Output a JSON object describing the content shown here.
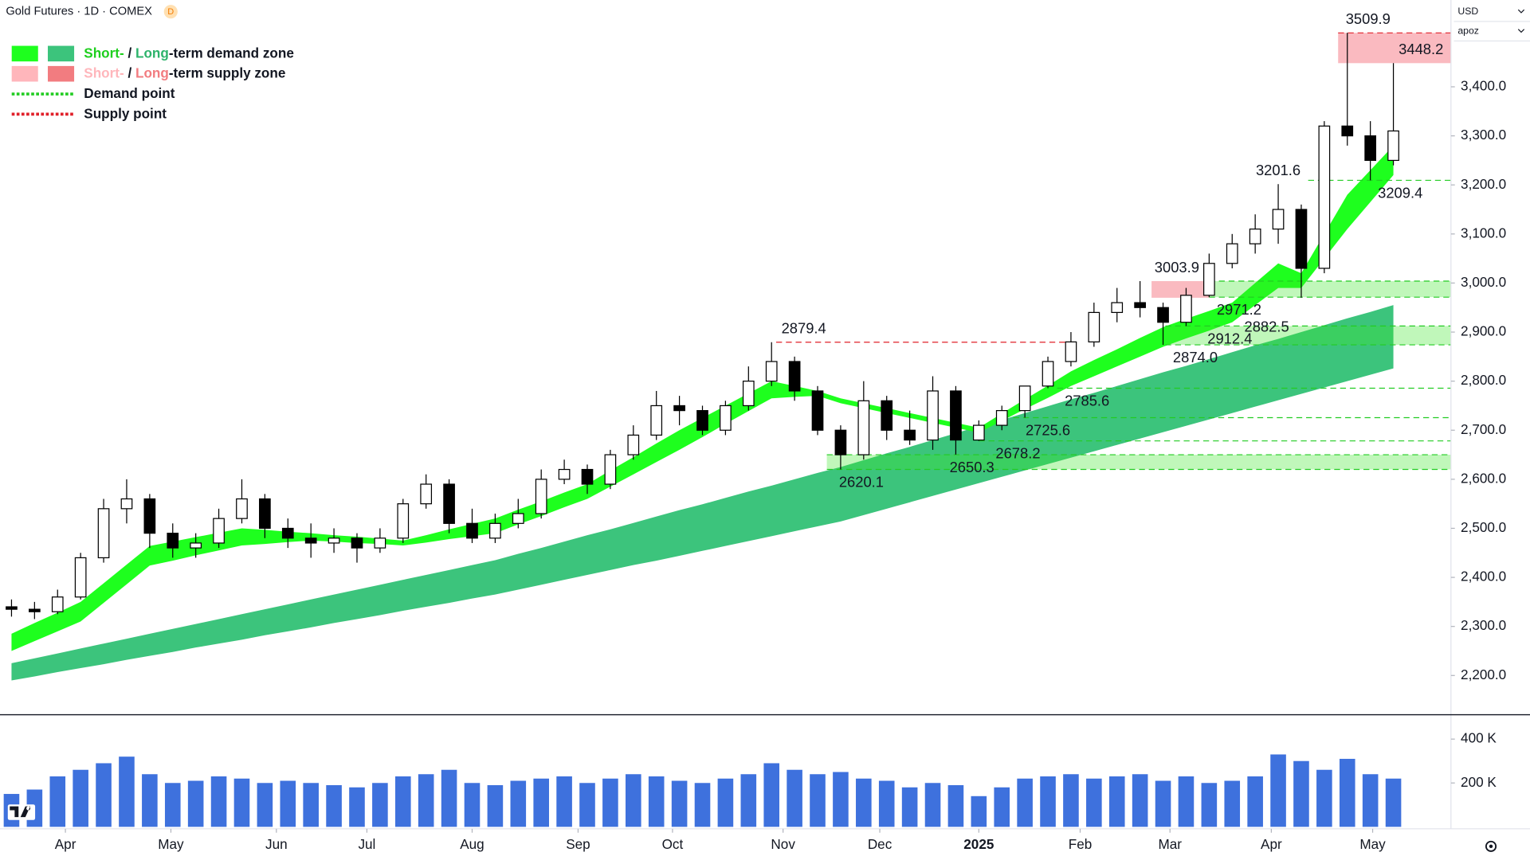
{
  "ui": {
    "badge": "D",
    "currency": "USD",
    "profile": "apoz"
  },
  "chart_data": {
    "type": "candlestick",
    "title": "Gold Futures · 1D · COMEX",
    "grid": false,
    "xlim": [
      0,
      63
    ],
    "xticks": [
      {
        "value": 2.84,
        "label": "Apr"
      },
      {
        "value": 7.42,
        "label": "May"
      },
      {
        "value": 12.0,
        "label": "Jun"
      },
      {
        "value": 15.93,
        "label": "Jul"
      },
      {
        "value": 20.5,
        "label": "Aug"
      },
      {
        "value": 25.1,
        "label": "Sep"
      },
      {
        "value": 29.2,
        "label": "Oct"
      },
      {
        "value": 34.0,
        "label": "Nov"
      },
      {
        "value": 38.2,
        "label": "Dec"
      },
      {
        "value": 42.5,
        "label": "2025"
      },
      {
        "value": 46.9,
        "label": "Feb"
      },
      {
        "value": 50.8,
        "label": "Mar"
      },
      {
        "value": 55.2,
        "label": "Apr"
      },
      {
        "value": 59.6,
        "label": "May"
      }
    ],
    "ylim": [
      2126,
      3567
    ],
    "yticks": [
      {
        "value": 2200,
        "label": "2,200.0"
      },
      {
        "value": 2300,
        "label": "2,300.0"
      },
      {
        "value": 2400,
        "label": "2,400.0"
      },
      {
        "value": 2500,
        "label": "2,500.0"
      },
      {
        "value": 2600,
        "label": "2,600.0"
      },
      {
        "value": 2700,
        "label": "2,700.0"
      },
      {
        "value": 2800,
        "label": "2,800.0"
      },
      {
        "value": 2900,
        "label": "2,900.0"
      },
      {
        "value": 3000,
        "label": "3,000.0"
      },
      {
        "value": 3100,
        "label": "3,100.0"
      },
      {
        "value": 3200,
        "label": "3,200.0"
      },
      {
        "value": 3300,
        "label": "3,300.0"
      },
      {
        "value": 3400,
        "label": "3,400.0"
      }
    ],
    "volume_ylim": [
      0,
      500000
    ],
    "volume_yticks": [
      {
        "value": 200000,
        "label": "200 K"
      },
      {
        "value": 400000,
        "label": "400 K"
      }
    ],
    "colors": {
      "up": "#ffffff",
      "down": "#000000",
      "wick": "#000000",
      "volume": "#2962d9",
      "short_demand": "#1eff1e",
      "long_demand": "#3cc47c",
      "short_supply": "#ffb6bb",
      "long_supply": "#f27c80",
      "demand_line": "#22cc22",
      "supply_line": "#e0202a"
    },
    "x": [
      0.5,
      1.5,
      2.5,
      3.5,
      4.5,
      5.5,
      6.5,
      7.5,
      8.5,
      9.5,
      10.5,
      11.5,
      12.5,
      13.5,
      14.5,
      15.5,
      16.5,
      17.5,
      18.5,
      19.5,
      20.5,
      21.5,
      22.5,
      23.5,
      24.5,
      25.5,
      26.5,
      27.5,
      28.5,
      29.5,
      30.5,
      31.5,
      32.5,
      33.5,
      34.5,
      35.5,
      36.5,
      37.5,
      38.5,
      39.5,
      40.5,
      41.5,
      42.5,
      43.5,
      44.5,
      45.5,
      46.5,
      47.5,
      48.5,
      49.5,
      50.5,
      51.5,
      52.5,
      53.5,
      54.5,
      55.5,
      56.5,
      57.5,
      58.5,
      59.5,
      60.5
    ],
    "open": [
      2340,
      2335,
      2330,
      2360,
      2440,
      2540,
      2560,
      2490,
      2460,
      2470,
      2520,
      2560,
      2500,
      2480,
      2470,
      2480,
      2460,
      2480,
      2550,
      2590,
      2510,
      2480,
      2510,
      2530,
      2600,
      2620,
      2590,
      2650,
      2690,
      2750,
      2740,
      2700,
      2750,
      2800,
      2840,
      2780,
      2700,
      2650,
      2760,
      2700,
      2680,
      2780,
      2680,
      2710,
      2740,
      2790,
      2840,
      2880,
      2940,
      2960,
      2950,
      2920,
      2975,
      3040,
      3080,
      3110,
      3150,
      3030,
      3320,
      3300,
      3250
    ],
    "high": [
      2355,
      2350,
      2375,
      2450,
      2560,
      2600,
      2570,
      2510,
      2490,
      2540,
      2600,
      2570,
      2520,
      2510,
      2500,
      2490,
      2500,
      2560,
      2610,
      2600,
      2540,
      2530,
      2560,
      2620,
      2640,
      2630,
      2660,
      2710,
      2780,
      2770,
      2750,
      2760,
      2830,
      2879.4,
      2850,
      2790,
      2710,
      2800,
      2770,
      2740,
      2810,
      2790,
      2720,
      2750,
      2790,
      2850,
      2900,
      2960,
      2990,
      3003.9,
      2960,
      2990,
      3060,
      3100,
      3140,
      3201.6,
      3160,
      3330,
      3509.9,
      3330,
      3448.2
    ],
    "low": [
      2320,
      2315,
      2325,
      2355,
      2430,
      2510,
      2460,
      2440,
      2440,
      2460,
      2510,
      2480,
      2460,
      2440,
      2450,
      2430,
      2450,
      2470,
      2540,
      2490,
      2470,
      2470,
      2500,
      2520,
      2590,
      2570,
      2580,
      2640,
      2680,
      2710,
      2690,
      2690,
      2740,
      2790,
      2760,
      2690,
      2620.1,
      2640,
      2680,
      2670,
      2660,
      2650.3,
      2678.2,
      2700,
      2725.6,
      2785.6,
      2830,
      2870,
      2920,
      2930,
      2874,
      2912.4,
      2971.2,
      3030,
      3060,
      3080,
      2970,
      3020,
      3280,
      3209.4,
      3240
    ],
    "close": [
      2335,
      2330,
      2360,
      2440,
      2540,
      2560,
      2490,
      2460,
      2470,
      2520,
      2560,
      2500,
      2480,
      2470,
      2480,
      2460,
      2480,
      2550,
      2590,
      2510,
      2480,
      2510,
      2530,
      2600,
      2620,
      2590,
      2650,
      2690,
      2750,
      2740,
      2700,
      2750,
      2800,
      2840,
      2780,
      2700,
      2650,
      2760,
      2700,
      2680,
      2780,
      2680,
      2710,
      2740,
      2790,
      2840,
      2880,
      2940,
      2960,
      2950,
      2920,
      2975,
      3040,
      3080,
      3110,
      3150,
      3030,
      3320,
      3300,
      3250,
      3310
    ],
    "volume": [
      150000,
      170000,
      230000,
      260000,
      290000,
      320000,
      240000,
      200000,
      210000,
      230000,
      220000,
      200000,
      210000,
      200000,
      190000,
      180000,
      200000,
      230000,
      240000,
      260000,
      200000,
      190000,
      210000,
      220000,
      230000,
      200000,
      220000,
      240000,
      230000,
      210000,
      200000,
      220000,
      240000,
      290000,
      260000,
      240000,
      250000,
      220000,
      210000,
      180000,
      200000,
      190000,
      140000,
      180000,
      220000,
      230000,
      240000,
      220000,
      230000,
      240000,
      210000,
      230000,
      200000,
      210000,
      230000,
      330000,
      300000,
      260000,
      310000,
      240000,
      220000
    ],
    "long_band": {
      "upper": [
        2225,
        2235,
        2245,
        2255,
        2265,
        2275,
        2285,
        2295,
        2305,
        2315,
        2325,
        2335,
        2345,
        2355,
        2365,
        2375,
        2385,
        2395,
        2405,
        2415,
        2425,
        2435,
        2448,
        2460,
        2473,
        2486,
        2498,
        2511,
        2524,
        2537,
        2549,
        2562,
        2575,
        2587,
        2600,
        2613,
        2625,
        2639,
        2653,
        2666,
        2680,
        2694,
        2708,
        2721,
        2735,
        2749,
        2763,
        2776,
        2790,
        2804,
        2818,
        2831,
        2845,
        2859,
        2873,
        2886,
        2900,
        2914,
        2928,
        2941,
        2955
      ],
      "lower": [
        2190,
        2198,
        2207,
        2215,
        2223,
        2232,
        2240,
        2248,
        2257,
        2265,
        2273,
        2282,
        2290,
        2298,
        2307,
        2315,
        2323,
        2332,
        2340,
        2348,
        2357,
        2365,
        2375,
        2385,
        2395,
        2405,
        2415,
        2425,
        2434,
        2444,
        2454,
        2464,
        2474,
        2484,
        2494,
        2504,
        2514,
        2527,
        2540,
        2553,
        2566,
        2579,
        2592,
        2605,
        2618,
        2631,
        2644,
        2657,
        2670,
        2683,
        2696,
        2709,
        2722,
        2735,
        2748,
        2761,
        2774,
        2787,
        2800,
        2813,
        2826
      ]
    },
    "short_band": {
      "upper": [
        2285,
        2307,
        2328,
        2350,
        2388,
        2426,
        2464,
        2473,
        2482,
        2491,
        2500,
        2497,
        2493,
        2490,
        2486,
        2483,
        2479,
        2475,
        2486,
        2498,
        2509,
        2520,
        2538,
        2555,
        2573,
        2590,
        2618,
        2645,
        2673,
        2700,
        2725,
        2750,
        2775,
        2800,
        2790,
        2780,
        2765,
        2755,
        2745,
        2735,
        2725,
        2715,
        2705,
        2734,
        2763,
        2791,
        2820,
        2843,
        2865,
        2888,
        2910,
        2927,
        2943,
        2960,
        3000,
        3040,
        3020,
        3100,
        3180,
        3230,
        3280
      ],
      "lower": [
        2250,
        2270,
        2290,
        2310,
        2348,
        2386,
        2424,
        2434,
        2445,
        2455,
        2465,
        2468,
        2472,
        2475,
        2473,
        2470,
        2468,
        2465,
        2471,
        2478,
        2484,
        2490,
        2508,
        2525,
        2543,
        2560,
        2585,
        2610,
        2635,
        2660,
        2686,
        2713,
        2739,
        2765,
        2768,
        2770,
        2755,
        2745,
        2735,
        2725,
        2715,
        2705,
        2695,
        2719,
        2743,
        2766,
        2790,
        2810,
        2830,
        2850,
        2870,
        2887,
        2903,
        2920,
        2955,
        2990,
        2990,
        3050,
        3110,
        3165,
        3220
      ]
    },
    "demand_zones": [
      {
        "from": 35.9,
        "low": 2620,
        "high": 2650
      },
      {
        "from": 50.6,
        "low": 2874,
        "high": 2912.4
      },
      {
        "from": 52.5,
        "low": 2971.2,
        "high": 3003.9
      }
    ],
    "supply_zones": [
      {
        "from": 50,
        "to": 52.5,
        "low": 2970,
        "high": 3003.9
      },
      {
        "from": 58.1,
        "low": 3448.2,
        "high": 3509.9
      }
    ],
    "supply_lines": [
      {
        "value": 2879.4,
        "from": 33.7,
        "to": 46.4
      },
      {
        "value": 3509.9,
        "from": 58.1
      }
    ],
    "demand_lines": [
      {
        "value": 2785.6,
        "from": 45.9
      },
      {
        "value": 2725.6,
        "from": 44
      },
      {
        "value": 2678.2,
        "from": 42.5
      },
      {
        "value": 3209.4,
        "from": 56.8
      }
    ],
    "price_labels": [
      {
        "value": 3509.9,
        "x": 59.4,
        "kind": "high"
      },
      {
        "value": 3448.2,
        "x": 61.7,
        "kind": "high"
      },
      {
        "value": 3201.6,
        "x": 55.5,
        "kind": "high"
      },
      {
        "value": 3209.4,
        "x": 60.8,
        "kind": "low"
      },
      {
        "value": 3003.9,
        "x": 51.1,
        "kind": "high"
      },
      {
        "value": 2882.5,
        "x": 55,
        "kind": "high"
      },
      {
        "value": 2971.2,
        "x": 53.8,
        "kind": "low"
      },
      {
        "value": 2912.4,
        "x": 53.4,
        "kind": "low"
      },
      {
        "value": 2874,
        "label": "2874.0",
        "x": 51.9,
        "kind": "low"
      },
      {
        "value": 2879.4,
        "x": 34.9,
        "kind": "high"
      },
      {
        "value": 2785.6,
        "x": 47.2,
        "kind": "low"
      },
      {
        "value": 2725.6,
        "x": 45.5,
        "kind": "low"
      },
      {
        "value": 2678.2,
        "x": 44.2,
        "kind": "low"
      },
      {
        "value": 2650.3,
        "x": 42.2,
        "kind": "low"
      },
      {
        "value": 2620.1,
        "x": 37.4,
        "kind": "low"
      }
    ],
    "legend": [
      {
        "swatches": [
          "#1eff1e",
          "#3cc47c"
        ],
        "parts": [
          {
            "text": "Short-",
            "color": "#1ecf1e"
          },
          {
            "text": " / ",
            "color": "#131722"
          },
          {
            "text": "Long",
            "color": "#2db36b"
          },
          {
            "text": "-term demand zone",
            "color": "#131722"
          }
        ]
      },
      {
        "swatches": [
          "#ffb6bb",
          "#f27c80"
        ],
        "parts": [
          {
            "text": "Short-",
            "color": "#ffb6bb"
          },
          {
            "text": " / ",
            "color": "#131722"
          },
          {
            "text": "Long",
            "color": "#f27c80"
          },
          {
            "text": "-term supply zone",
            "color": "#131722"
          }
        ]
      },
      {
        "dash": "#22cc22",
        "parts": [
          {
            "text": "Demand point",
            "color": "#131722"
          }
        ]
      },
      {
        "dash": "#e0202a",
        "parts": [
          {
            "text": "Supply point",
            "color": "#131722"
          }
        ]
      }
    ]
  }
}
